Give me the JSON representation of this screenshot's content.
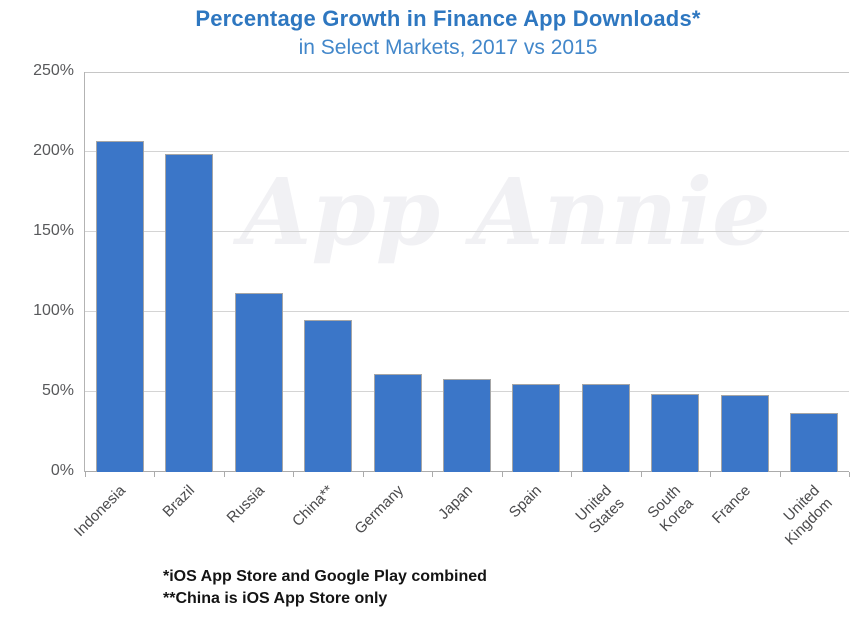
{
  "watermark": {
    "text": "App Annie"
  },
  "colors": {
    "title": "#2e77c0",
    "subtitle": "#4287ca",
    "bar": "#3b76c8",
    "bar_border": "#a6a6a6",
    "gridline": "#d4d4d4",
    "axis": "#ababab",
    "tick_label": "#58595b",
    "watermark": "#f1f1f4",
    "background": "#ffffff"
  },
  "chart_data": {
    "type": "bar",
    "title": "Percentage Growth in Finance App Downloads*",
    "subtitle": "in Select Markets, 2017 vs 2015",
    "categories": [
      "Indonesia",
      "Brazil",
      "Russia",
      "China**",
      "Germany",
      "Japan",
      "Spain",
      "United States",
      "South Korea",
      "France",
      "United Kingdom"
    ],
    "values": [
      207,
      199,
      112,
      95,
      61,
      58,
      55,
      55,
      49,
      48,
      37
    ],
    "unit": "%",
    "xlabel": "",
    "ylabel": "",
    "ylim": [
      0,
      250
    ],
    "ytick_interval": 50,
    "yticks": [
      "0%",
      "50%",
      "100%",
      "150%",
      "200%",
      "250%"
    ],
    "grid": true,
    "legend": "none",
    "bar_color": "#3b76c8",
    "annotations": [
      "*iOS App Store and Google Play combined",
      "**China is iOS App Store only"
    ]
  }
}
